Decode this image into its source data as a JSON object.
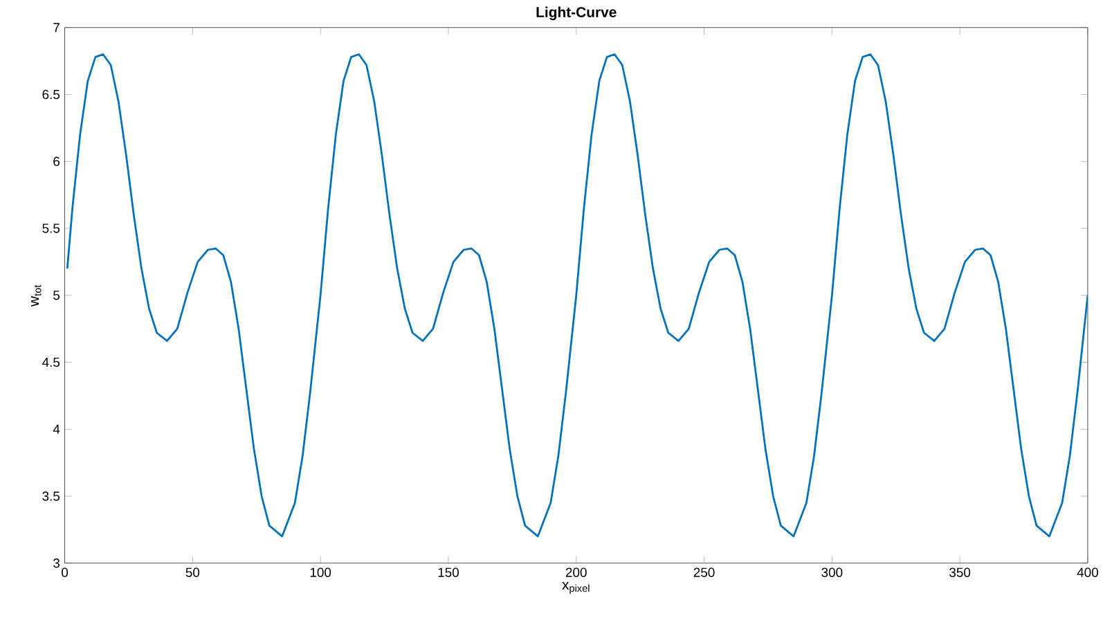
{
  "chart_data": {
    "type": "line",
    "title": "Light-Curve",
    "xlabel": "x$_{pixel}$",
    "ylabel": "w$_{tot}$",
    "xlim": [
      0,
      400
    ],
    "ylim": [
      3,
      7
    ],
    "xticks": [
      0,
      50,
      100,
      150,
      200,
      250,
      300,
      350,
      400
    ],
    "yticks": [
      3,
      3.5,
      4,
      4.5,
      5,
      5.5,
      6,
      6.5,
      7
    ],
    "grid": false,
    "marker": "none",
    "line_style": "solid",
    "series": [
      {
        "color": "#0072bd",
        "x": [
          1,
          3,
          6,
          9,
          12,
          15,
          18,
          21,
          24,
          27,
          30,
          33,
          36,
          40,
          44,
          48,
          52,
          56,
          59,
          62,
          65,
          68,
          71,
          74,
          77,
          80,
          85,
          90,
          93,
          96,
          100,
          103,
          106,
          109,
          112,
          115,
          118,
          121,
          124,
          127,
          130,
          133,
          136,
          140,
          144,
          148,
          152,
          156,
          159,
          162,
          165,
          168,
          171,
          174,
          177,
          180,
          185,
          190,
          193,
          196,
          200,
          203,
          206,
          209,
          212,
          215,
          218,
          221,
          224,
          227,
          230,
          233,
          236,
          240,
          244,
          248,
          252,
          256,
          259,
          262,
          265,
          268,
          271,
          274,
          277,
          280,
          285,
          290,
          293,
          296,
          300,
          303,
          306,
          309,
          312,
          315,
          318,
          321,
          324,
          327,
          330,
          333,
          336,
          340,
          344,
          348,
          352,
          356,
          359,
          362,
          365,
          368,
          371,
          374,
          377,
          380,
          385,
          390,
          393,
          396,
          400
        ],
        "values": [
          5.2,
          5.65,
          6.2,
          6.6,
          6.78,
          6.8,
          6.72,
          6.45,
          6.05,
          5.6,
          5.2,
          4.9,
          4.72,
          4.66,
          4.75,
          5.02,
          5.25,
          5.34,
          5.35,
          5.3,
          5.1,
          4.75,
          4.3,
          3.85,
          3.5,
          3.28,
          3.2,
          3.45,
          3.8,
          4.28,
          5.0,
          5.65,
          6.2,
          6.6,
          6.78,
          6.8,
          6.72,
          6.45,
          6.05,
          5.6,
          5.2,
          4.9,
          4.72,
          4.66,
          4.75,
          5.02,
          5.25,
          5.34,
          5.35,
          5.3,
          5.1,
          4.75,
          4.3,
          3.85,
          3.5,
          3.28,
          3.2,
          3.45,
          3.8,
          4.28,
          5.0,
          5.65,
          6.2,
          6.6,
          6.78,
          6.8,
          6.72,
          6.45,
          6.05,
          5.6,
          5.2,
          4.9,
          4.72,
          4.66,
          4.75,
          5.02,
          5.25,
          5.34,
          5.35,
          5.3,
          5.1,
          4.75,
          4.3,
          3.85,
          3.5,
          3.28,
          3.2,
          3.45,
          3.8,
          4.28,
          5.0,
          5.65,
          6.2,
          6.6,
          6.78,
          6.8,
          6.72,
          6.45,
          6.05,
          5.6,
          5.2,
          4.9,
          4.72,
          4.66,
          4.75,
          5.02,
          5.25,
          5.34,
          5.35,
          5.3,
          5.1,
          4.75,
          4.3,
          3.85,
          3.5,
          3.28,
          3.2,
          3.45,
          3.8,
          4.28,
          5.0
        ]
      }
    ]
  }
}
